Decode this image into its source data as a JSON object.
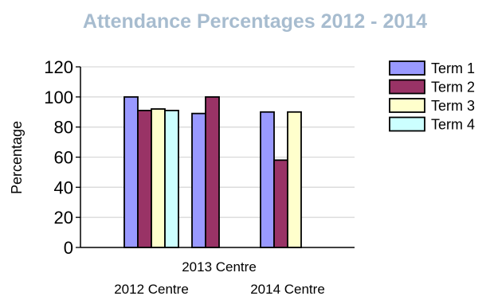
{
  "chart_data": {
    "type": "bar",
    "title": "Attendance Percentages 2012 - 2014",
    "ylabel": "Percentage",
    "ylim": [
      0,
      120
    ],
    "yticks": [
      0,
      20,
      40,
      60,
      80,
      100,
      120
    ],
    "grid": true,
    "legend_position": "right",
    "categories": [
      "2012 Centre",
      "2013 Centre",
      "2014 Centre"
    ],
    "series": [
      {
        "name": "Term 1",
        "color": "#9999ff",
        "values": [
          100,
          89,
          90
        ]
      },
      {
        "name": "Term 2",
        "color": "#993366",
        "values": [
          91,
          100,
          58
        ]
      },
      {
        "name": "Term 3",
        "color": "#ffffcc",
        "values": [
          92,
          null,
          90
        ]
      },
      {
        "name": "Term 4",
        "color": "#ccffff",
        "values": [
          91,
          null,
          null
        ]
      }
    ]
  }
}
